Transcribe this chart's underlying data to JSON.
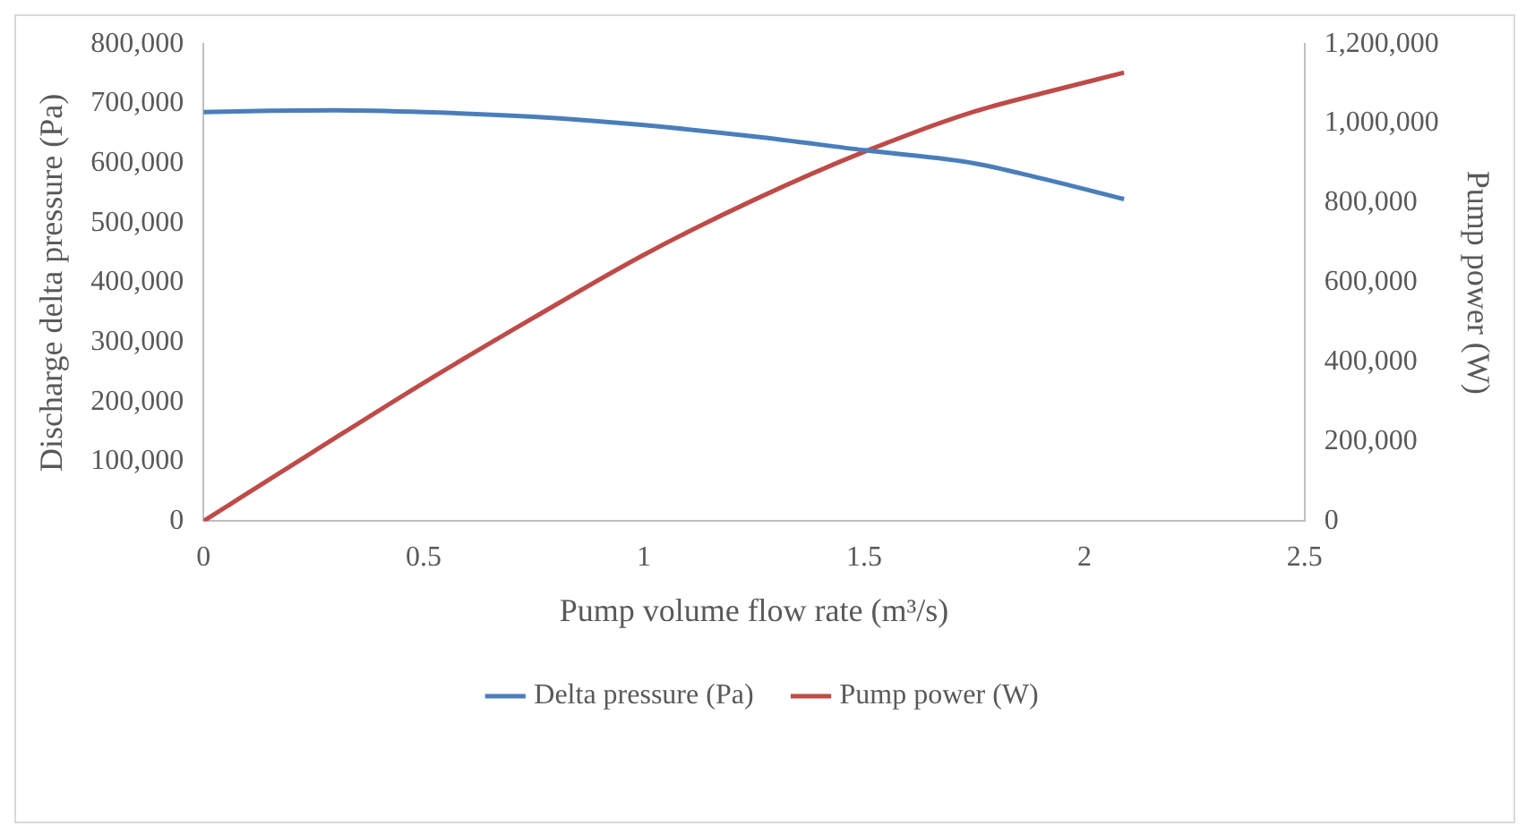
{
  "chart_data": {
    "type": "line",
    "xlabel": "Pump volume flow rate (m³/s)",
    "ylabel": "Discharge delta pressure (Pa)",
    "y2label": "Pump power (W)",
    "xlim": [
      0,
      2.5
    ],
    "xticks": [
      0,
      0.5,
      1,
      1.5,
      2,
      2.5
    ],
    "ylim": [
      0,
      800000
    ],
    "yticks": [
      0,
      {
        "value": 100000,
        "label": "100,000"
      },
      {
        "value": 200000,
        "label": "200,000"
      },
      {
        "value": 300000,
        "label": "300,000"
      },
      {
        "value": 400000,
        "label": "400,000"
      },
      {
        "value": 500000,
        "label": "500,000"
      },
      {
        "value": 600000,
        "label": "600,000"
      },
      {
        "value": 700000,
        "label": "700,000"
      },
      {
        "value": 800000,
        "label": "800,000"
      }
    ],
    "y2lim": [
      0,
      1200000
    ],
    "y2ticks": [
      0,
      {
        "value": 200000,
        "label": "200,000"
      },
      {
        "value": 400000,
        "label": "400,000"
      },
      {
        "value": 600000,
        "label": "600,000"
      },
      {
        "value": 800000,
        "label": "800,000"
      },
      {
        "value": 1000000,
        "label": "1,000,000"
      },
      {
        "value": 1200000,
        "label": "1,200,000"
      }
    ],
    "grid": false,
    "legend": "bottom",
    "marker": "none",
    "line_style": "solid",
    "series": [
      {
        "name": "Delta pressure (Pa)",
        "color": "#4a7ebb",
        "x": [
          0,
          0.15,
          0.3,
          0.5,
          0.75,
          1,
          1.25,
          1.5,
          1.75,
          1.9,
          2.09
        ],
        "values": [
          686000,
          688000,
          689000,
          686000,
          678000,
          664000,
          645000,
          622000,
          600000,
          575000,
          540000
        ]
      },
      {
        "name": "Pump power (W)",
        "color": "#be4b48",
        "axis": "y2",
        "x": [
          0,
          0.25,
          0.5,
          0.75,
          1,
          1.25,
          1.5,
          1.75,
          1.9,
          2.09
        ],
        "values": [
          0,
          175000,
          348000,
          512000,
          670000,
          808000,
          929000,
          1030000,
          1075000,
          1128000
        ]
      }
    ]
  }
}
